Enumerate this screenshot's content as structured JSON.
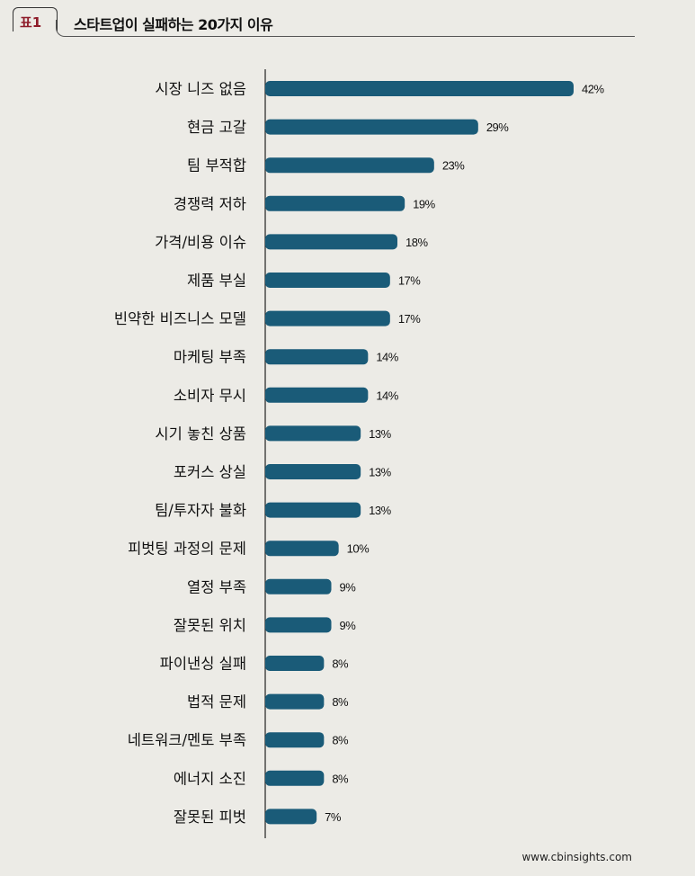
{
  "header": {
    "tag": "표1",
    "title": "스타트업이 실패하는 20가지 이유"
  },
  "source": "www.cbinsights.com",
  "colors": {
    "bar": "#1a5b78",
    "text": "#111111",
    "tag": "#8e1c2a"
  },
  "chart_data": {
    "type": "bar",
    "orientation": "horizontal",
    "title": "스타트업이 실패하는 20가지 이유",
    "value_suffix": "%",
    "categories": [
      "시장 니즈 없음",
      "현금 고갈",
      "팀 부적합",
      "경쟁력 저하",
      "가격/비용 이슈",
      "제품 부실",
      "빈약한 비즈니스 모델",
      "마케팅 부족",
      "소비자 무시",
      "시기 놓친 상품",
      "포커스 상실",
      "팀/투자자 불화",
      "피벗팅 과정의 문제",
      "열정 부족",
      "잘못된 위치",
      "파이낸싱 실패",
      "법적 문제",
      "네트워크/멘토 부족",
      "에너지 소진",
      "잘못된 피벗"
    ],
    "values": [
      42,
      29,
      23,
      19,
      18,
      17,
      17,
      14,
      14,
      13,
      13,
      13,
      10,
      9,
      9,
      8,
      8,
      8,
      8,
      7
    ],
    "value_labels": [
      "42%",
      "29%",
      "23%",
      "19%",
      "18%",
      "17%",
      "17%",
      "14%",
      "14%",
      "13%",
      "13%",
      "13%",
      "10%",
      "9%",
      "9%",
      "8%",
      "8%",
      "8%",
      "8%",
      "7%"
    ],
    "xlim": [
      0,
      42
    ],
    "grid": false,
    "legend": "none"
  }
}
